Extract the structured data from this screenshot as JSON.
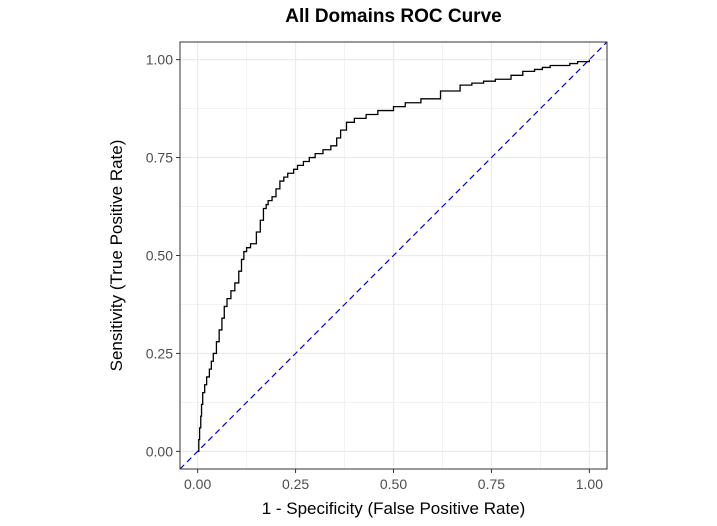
{
  "chart_data": {
    "type": "line",
    "title": "All Domains ROC Curve",
    "xlabel": "1 - Specificity (False Positive Rate)",
    "ylabel": "Sensitivity (True Positive Rate)",
    "xlim": [
      -0.045,
      1.045
    ],
    "ylim": [
      -0.045,
      1.045
    ],
    "x_ticks": [
      0.0,
      0.25,
      0.5,
      0.75,
      1.0
    ],
    "x_tick_labels": [
      "0.00",
      "0.25",
      "0.50",
      "0.75",
      "1.00"
    ],
    "y_ticks": [
      0.0,
      0.25,
      0.5,
      0.75,
      1.0
    ],
    "y_tick_labels": [
      "0.00",
      "0.25",
      "0.50",
      "0.75",
      "1.00"
    ],
    "grid": true,
    "legend": "none",
    "colors": {
      "roc": "#000000",
      "reference": "#0000cc",
      "grid": "#ebebeb",
      "border": "#333333"
    },
    "series": [
      {
        "style": "step",
        "x": [
          0.0,
          0.003,
          0.005,
          0.008,
          0.01,
          0.013,
          0.018,
          0.023,
          0.03,
          0.035,
          0.04,
          0.048,
          0.055,
          0.062,
          0.068,
          0.075,
          0.085,
          0.095,
          0.105,
          0.112,
          0.118,
          0.125,
          0.135,
          0.15,
          0.16,
          0.168,
          0.175,
          0.18,
          0.19,
          0.2,
          0.21,
          0.22,
          0.23,
          0.245,
          0.255,
          0.27,
          0.285,
          0.3,
          0.32,
          0.34,
          0.355,
          0.365,
          0.38,
          0.4,
          0.43,
          0.46,
          0.5,
          0.53,
          0.57,
          0.62,
          0.67,
          0.7,
          0.73,
          0.76,
          0.8,
          0.83,
          0.86,
          0.88,
          0.9,
          0.95,
          0.97,
          1.0
        ],
        "y": [
          0.0,
          0.03,
          0.06,
          0.09,
          0.12,
          0.15,
          0.17,
          0.19,
          0.21,
          0.23,
          0.25,
          0.28,
          0.31,
          0.34,
          0.37,
          0.39,
          0.41,
          0.43,
          0.46,
          0.49,
          0.51,
          0.52,
          0.53,
          0.56,
          0.59,
          0.62,
          0.63,
          0.64,
          0.65,
          0.67,
          0.69,
          0.7,
          0.71,
          0.72,
          0.73,
          0.74,
          0.75,
          0.76,
          0.77,
          0.78,
          0.8,
          0.82,
          0.84,
          0.85,
          0.86,
          0.87,
          0.88,
          0.89,
          0.9,
          0.92,
          0.935,
          0.94,
          0.945,
          0.95,
          0.96,
          0.97,
          0.975,
          0.98,
          0.985,
          0.99,
          0.995,
          1.0
        ]
      },
      {
        "style": "dashed",
        "x": [
          -0.045,
          1.045
        ],
        "y": [
          -0.045,
          1.045
        ]
      }
    ]
  }
}
